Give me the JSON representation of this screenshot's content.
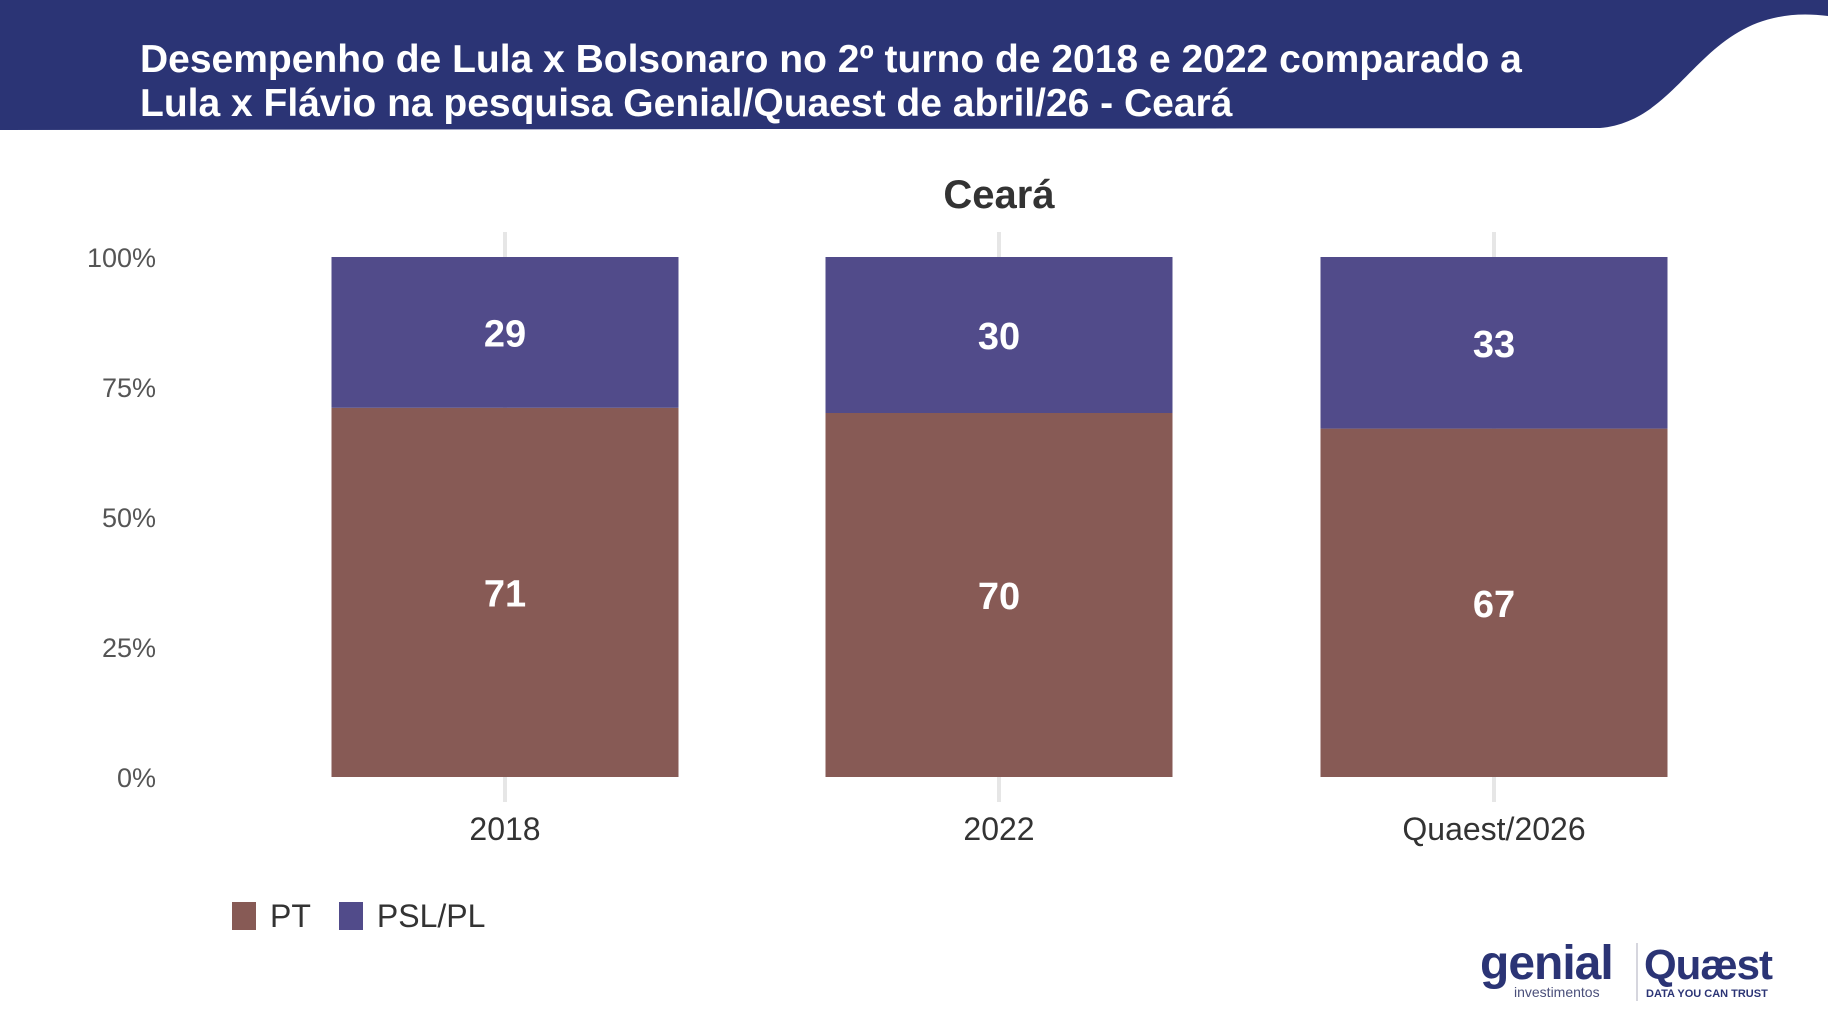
{
  "slide": {
    "title_line1": "Desempenho de Lula x Bolsonaro no 2º turno de 2018 e 2022 comparado a",
    "title_line2": "Lula x Flávio na pesquisa Genial/Quaest de abril/26 - Ceará",
    "header_color": "#2b3475"
  },
  "chart_data": {
    "type": "bar",
    "stacked": true,
    "title": "Ceará",
    "categories": [
      "2018",
      "2022",
      "Quaest/2026"
    ],
    "series": [
      {
        "name": "PT",
        "values": [
          71,
          70,
          67
        ],
        "color": "#875a55"
      },
      {
        "name": "PSL/PL",
        "values": [
          29,
          30,
          33
        ],
        "color": "#514b8a"
      }
    ],
    "ylim": [
      0,
      100
    ],
    "y_ticks": [
      "0%",
      "25%",
      "50%",
      "75%",
      "100%"
    ],
    "grid": "vertical-center-lines",
    "legend_position": "bottom-left"
  },
  "logos": {
    "genial_main": "genial",
    "genial_sub": "investimentos",
    "quaest_main": "Quæst",
    "quaest_sub": "DATA YOU CAN TRUST"
  }
}
